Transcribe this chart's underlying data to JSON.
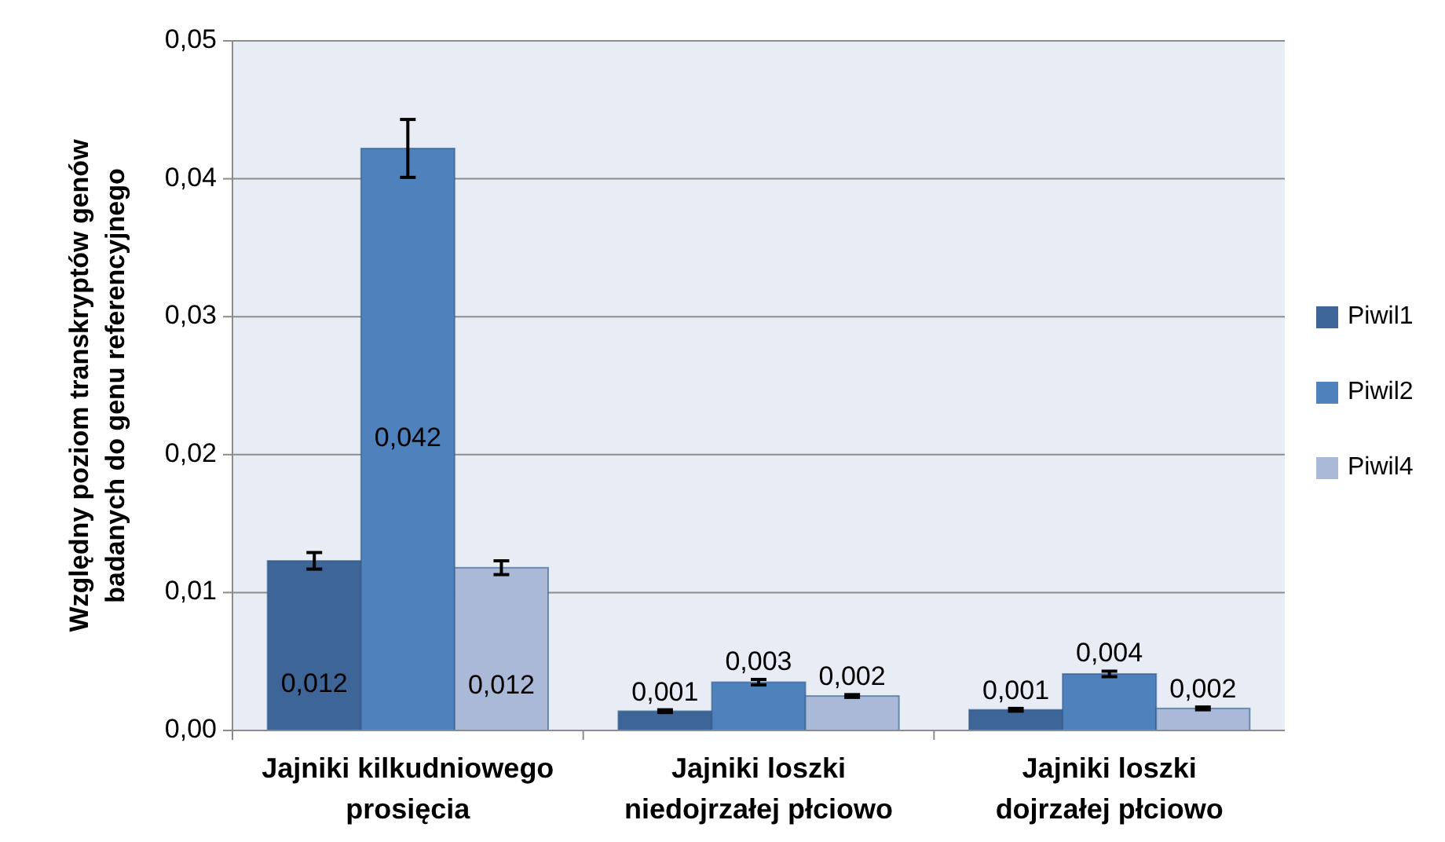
{
  "chart_data": {
    "type": "bar",
    "ylabel": "Względny poziom transkryptów genów badanych do genu referencyjnego",
    "categories": [
      "Jajniki kilkudniowego prosięcia",
      "Jajniki loszki niedojrzałej płciowo",
      "Jajniki loszki dojrzałej płciowo"
    ],
    "series": [
      {
        "name": "Piwil1",
        "color": "#3d6597",
        "values": [
          0.0123,
          0.0014,
          0.0015
        ],
        "errors": [
          0.0006,
          0.0001,
          0.0001
        ],
        "value_labels": [
          "0,012",
          "0,001",
          "0,001"
        ]
      },
      {
        "name": "Piwil2",
        "color": "#4f81bd",
        "values": [
          0.0422,
          0.0035,
          0.0041
        ],
        "errors": [
          0.0021,
          0.0002,
          0.0002
        ],
        "value_labels": [
          "0,042",
          "0,003",
          "0,004"
        ]
      },
      {
        "name": "Piwil4",
        "color": "#aab9d8",
        "values": [
          0.0118,
          0.0025,
          0.0016
        ],
        "errors": [
          0.0005,
          0.0001,
          0.0001
        ],
        "value_labels": [
          "0,012",
          "0,002",
          "0,002"
        ]
      }
    ],
    "ylim": [
      0,
      0.05
    ],
    "yticks": [
      {
        "value": 0,
        "label": "0,00"
      },
      {
        "value": 0.01,
        "label": "0,01"
      },
      {
        "value": 0.02,
        "label": "0,02"
      },
      {
        "value": 0.03,
        "label": "0,03"
      },
      {
        "value": 0.04,
        "label": "0,04"
      },
      {
        "value": 0.05,
        "label": "0,05"
      }
    ],
    "grid": "y",
    "legend": "right"
  }
}
